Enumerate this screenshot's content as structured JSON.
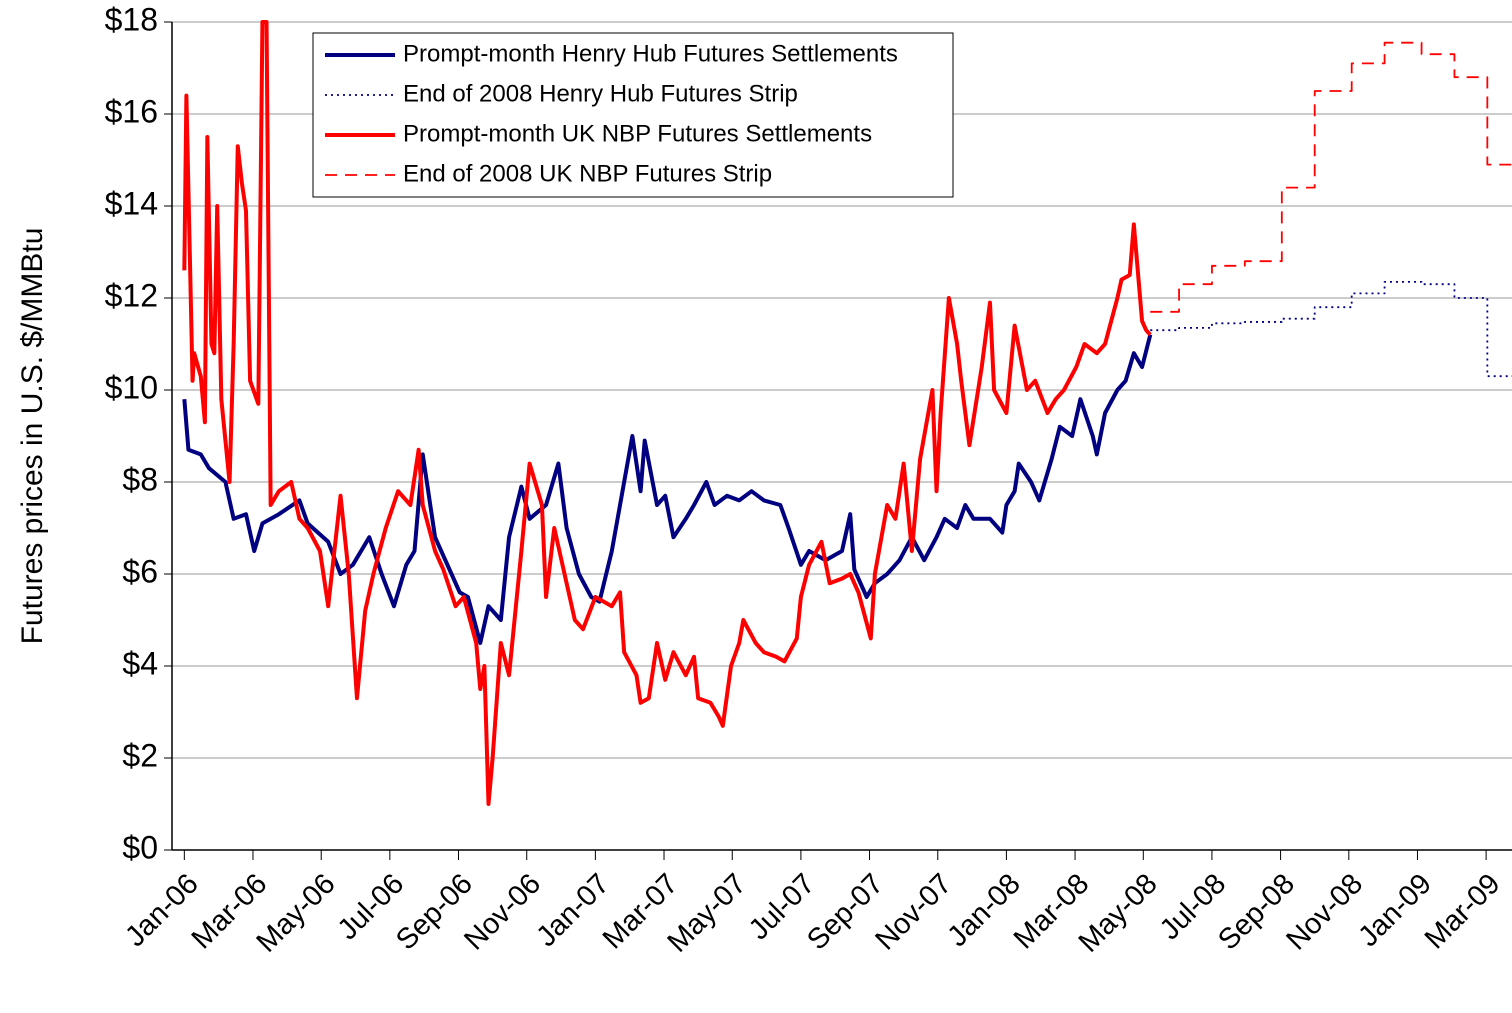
{
  "chart_data": {
    "type": "line",
    "y_label": "Futures prices in U.S. $/MMBtu",
    "xlim": [
      2005.97,
      2009.23
    ],
    "xticks": [
      {
        "value": 2006.0,
        "label": "Jan-06"
      },
      {
        "value": 2006.167,
        "label": "Mar-06"
      },
      {
        "value": 2006.333,
        "label": "May-06"
      },
      {
        "value": 2006.5,
        "label": "Jul-06"
      },
      {
        "value": 2006.667,
        "label": "Sep-06"
      },
      {
        "value": 2006.833,
        "label": "Nov-06"
      },
      {
        "value": 2007.0,
        "label": "Jan-07"
      },
      {
        "value": 2007.167,
        "label": "Mar-07"
      },
      {
        "value": 2007.333,
        "label": "May-07"
      },
      {
        "value": 2007.5,
        "label": "Jul-07"
      },
      {
        "value": 2007.667,
        "label": "Sep-07"
      },
      {
        "value": 2007.833,
        "label": "Nov-07"
      },
      {
        "value": 2008.0,
        "label": "Jan-08"
      },
      {
        "value": 2008.167,
        "label": "Mar-08"
      },
      {
        "value": 2008.333,
        "label": "May-08"
      },
      {
        "value": 2008.5,
        "label": "Jul-08"
      },
      {
        "value": 2008.667,
        "label": "Sep-08"
      },
      {
        "value": 2008.833,
        "label": "Nov-08"
      },
      {
        "value": 2009.0,
        "label": "Jan-09"
      },
      {
        "value": 2009.167,
        "label": "Mar-09"
      }
    ],
    "ylim": [
      0,
      18
    ],
    "yticks": [
      {
        "value": 0,
        "label": "$0"
      },
      {
        "value": 2,
        "label": "$2"
      },
      {
        "value": 4,
        "label": "$4"
      },
      {
        "value": 6,
        "label": "$6"
      },
      {
        "value": 8,
        "label": "$8"
      },
      {
        "value": 10,
        "label": "$10"
      },
      {
        "value": 12,
        "label": "$12"
      },
      {
        "value": 14,
        "label": "$14"
      },
      {
        "value": 16,
        "label": "$16"
      },
      {
        "value": 18,
        "label": "$18"
      }
    ],
    "grid": true,
    "legend": "upper-left",
    "series": [
      {
        "name": "Prompt-month Henry Hub Futures Settlements",
        "color": "#000080",
        "dash": "solid",
        "drawstyle": "line",
        "x": [
          2006.0,
          2006.01,
          2006.04,
          2006.06,
          2006.1,
          2006.12,
          2006.15,
          2006.17,
          2006.19,
          2006.23,
          2006.28,
          2006.3,
          2006.35,
          2006.38,
          2006.41,
          2006.45,
          2006.48,
          2006.51,
          2006.54,
          2006.56,
          2006.58,
          2006.61,
          2006.65,
          2006.67,
          2006.69,
          2006.72,
          2006.74,
          2006.77,
          2006.79,
          2006.82,
          2006.84,
          2006.88,
          2006.91,
          2006.93,
          2006.96,
          2006.99,
          2007.01,
          2007.04,
          2007.06,
          2007.09,
          2007.11,
          2007.12,
          2007.15,
          2007.17,
          2007.19,
          2007.22,
          2007.24,
          2007.27,
          2007.29,
          2007.32,
          2007.35,
          2007.38,
          2007.41,
          2007.45,
          2007.47,
          2007.5,
          2007.52,
          2007.56,
          2007.6,
          2007.62,
          2007.63,
          2007.66,
          2007.68,
          2007.71,
          2007.74,
          2007.77,
          2007.8,
          2007.83,
          2007.85,
          2007.88,
          2007.9,
          2007.92,
          2007.96,
          2007.99,
          2008.0,
          2008.02,
          2008.03,
          2008.06,
          2008.08,
          2008.11,
          2008.13,
          2008.16,
          2008.18,
          2008.21,
          2008.22,
          2008.24,
          2008.27,
          2008.29,
          2008.31,
          2008.33,
          2008.35
        ],
        "values": [
          9.8,
          8.7,
          8.6,
          8.3,
          8.0,
          7.2,
          7.3,
          6.5,
          7.1,
          7.3,
          7.6,
          7.1,
          6.7,
          6.0,
          6.2,
          6.8,
          6.0,
          5.3,
          6.2,
          6.5,
          8.6,
          6.8,
          6.0,
          5.6,
          5.5,
          4.5,
          5.3,
          5.0,
          6.8,
          7.9,
          7.2,
          7.5,
          8.4,
          7.0,
          6.0,
          5.5,
          5.4,
          6.5,
          7.5,
          9.0,
          7.8,
          8.9,
          7.5,
          7.7,
          6.8,
          7.2,
          7.5,
          8.0,
          7.5,
          7.7,
          7.6,
          7.8,
          7.6,
          7.5,
          7.0,
          6.2,
          6.5,
          6.3,
          6.5,
          7.3,
          6.1,
          5.5,
          5.8,
          6.0,
          6.3,
          6.8,
          6.3,
          6.8,
          7.2,
          7.0,
          7.5,
          7.2,
          7.2,
          6.9,
          7.5,
          7.8,
          8.4,
          8.0,
          7.6,
          8.5,
          9.2,
          9.0,
          9.8,
          9.0,
          8.6,
          9.5,
          10.0,
          10.2,
          10.8,
          10.5,
          11.2
        ]
      },
      {
        "name": "End of 2008 Henry Hub Futures Strip",
        "color": "#000080",
        "dash": "dotted",
        "drawstyle": "steps-post",
        "x": [
          2008.35,
          2008.42,
          2008.5,
          2008.58,
          2008.67,
          2008.75,
          2008.84,
          2008.92,
          2009.01,
          2009.09,
          2009.17,
          2009.23
        ],
        "values": [
          11.3,
          11.35,
          11.45,
          11.48,
          11.55,
          11.8,
          12.1,
          12.35,
          12.3,
          12.0,
          10.3,
          10.3
        ]
      },
      {
        "name": "Prompt-month  UK NBP Futures Settlements",
        "color": "#ff0000",
        "dash": "solid",
        "drawstyle": "line",
        "x": [
          2006.0,
          2006.005,
          2006.02,
          2006.024,
          2006.04,
          2006.05,
          2006.056,
          2006.066,
          2006.073,
          2006.08,
          2006.09,
          2006.11,
          2006.12,
          2006.13,
          2006.14,
          2006.15,
          2006.16,
          2006.18,
          2006.19,
          2006.2,
          2006.21,
          2006.23,
          2006.26,
          2006.28,
          2006.3,
          2006.33,
          2006.35,
          2006.38,
          2006.4,
          2006.42,
          2006.44,
          2006.46,
          2006.49,
          2006.52,
          2006.55,
          2006.57,
          2006.58,
          2006.61,
          2006.63,
          2006.66,
          2006.68,
          2006.71,
          2006.72,
          2006.73,
          2006.74,
          2006.75,
          2006.77,
          2006.79,
          2006.82,
          2006.84,
          2006.87,
          2006.88,
          2006.9,
          2006.93,
          2006.95,
          2006.97,
          2007.0,
          2007.04,
          2007.06,
          2007.07,
          2007.1,
          2007.11,
          2007.13,
          2007.15,
          2007.17,
          2007.19,
          2007.22,
          2007.24,
          2007.25,
          2007.28,
          2007.3,
          2007.31,
          2007.33,
          2007.35,
          2007.36,
          2007.39,
          2007.41,
          2007.44,
          2007.46,
          2007.49,
          2007.5,
          2007.52,
          2007.55,
          2007.57,
          2007.6,
          2007.62,
          2007.64,
          2007.67,
          2007.68,
          2007.71,
          2007.73,
          2007.75,
          2007.77,
          2007.79,
          2007.82,
          2007.83,
          2007.84,
          2007.86,
          2007.88,
          2007.89,
          2007.91,
          2007.94,
          2007.96,
          2007.97,
          2008.0,
          2008.02,
          2008.05,
          2008.07,
          2008.1,
          2008.12,
          2008.14,
          2008.17,
          2008.19,
          2008.22,
          2008.24,
          2008.27,
          2008.28,
          2008.3,
          2008.31,
          2008.33,
          2008.34,
          2008.35
        ],
        "values": [
          12.6,
          16.4,
          10.2,
          10.8,
          10.3,
          9.3,
          15.5,
          11.0,
          10.8,
          14.0,
          9.8,
          8.0,
          11.0,
          15.3,
          14.5,
          13.9,
          10.2,
          9.7,
          18.0,
          18.0,
          7.5,
          7.8,
          8.0,
          7.2,
          7.0,
          6.5,
          5.3,
          7.7,
          6.0,
          3.3,
          5.2,
          6.0,
          7.0,
          7.8,
          7.5,
          8.7,
          7.5,
          6.5,
          6.1,
          5.3,
          5.5,
          4.5,
          3.5,
          4.0,
          1.0,
          2.0,
          4.5,
          3.8,
          6.5,
          8.4,
          7.5,
          5.5,
          7.0,
          5.8,
          5.0,
          4.8,
          5.5,
          5.3,
          5.6,
          4.3,
          3.8,
          3.2,
          3.3,
          4.5,
          3.7,
          4.3,
          3.8,
          4.2,
          3.3,
          3.2,
          2.9,
          2.7,
          4.0,
          4.5,
          5.0,
          4.5,
          4.3,
          4.2,
          4.1,
          4.6,
          5.5,
          6.2,
          6.7,
          5.8,
          5.9,
          6.0,
          5.6,
          4.6,
          6.0,
          7.5,
          7.2,
          8.4,
          6.5,
          8.5,
          10.0,
          7.8,
          9.5,
          12.0,
          11.0,
          10.2,
          8.8,
          10.5,
          11.9,
          10.0,
          9.5,
          11.4,
          10.0,
          10.2,
          9.5,
          9.8,
          10.0,
          10.5,
          11.0,
          10.8,
          11.0,
          12.0,
          12.4,
          12.5,
          13.6,
          11.5,
          11.3,
          11.2
        ]
      },
      {
        "name": "End of 2008 UK NBP Futures Strip",
        "color": "#ff0000",
        "dash": "dashed",
        "drawstyle": "steps-post",
        "x": [
          2008.35,
          2008.42,
          2008.5,
          2008.58,
          2008.67,
          2008.75,
          2008.84,
          2008.92,
          2009.01,
          2009.09,
          2009.17,
          2009.23
        ],
        "values": [
          11.7,
          12.3,
          12.7,
          12.8,
          14.4,
          16.5,
          17.1,
          17.55,
          17.3,
          16.8,
          14.9,
          14.9
        ]
      }
    ]
  }
}
